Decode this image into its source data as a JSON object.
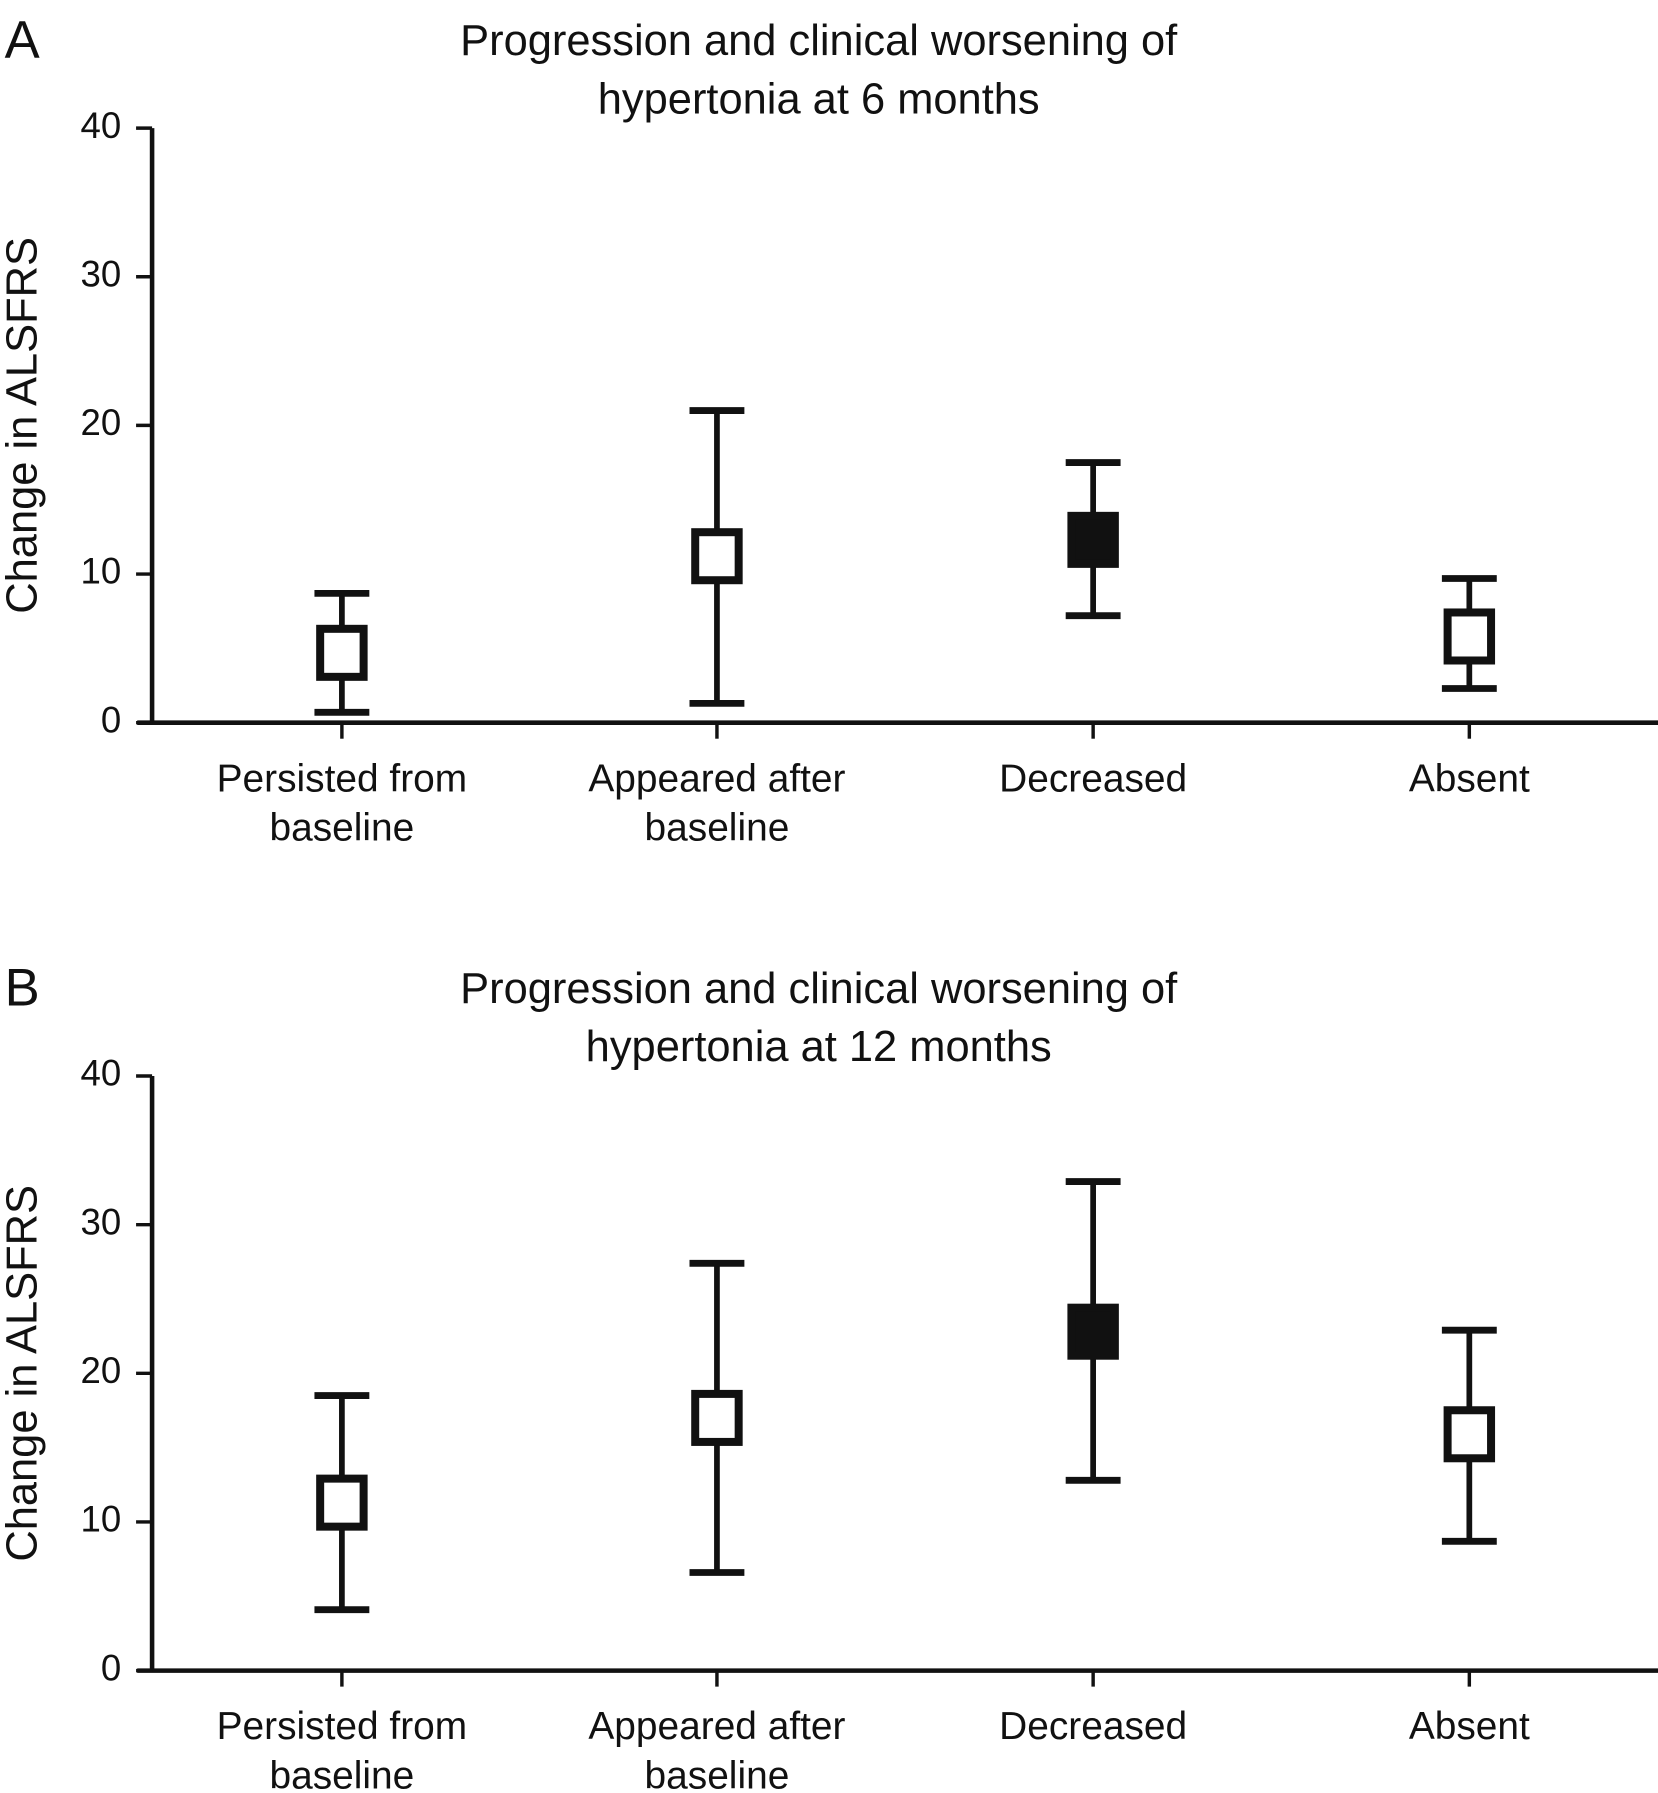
{
  "chart_data": [
    {
      "type": "errorbar",
      "panel_label": "A",
      "title": [
        "Progression and clinical worsening of",
        "hypertonia at 6 months"
      ],
      "ylabel": "Change in ALSFRS",
      "categories": [
        [
          "Persisted from",
          "baseline"
        ],
        [
          "Appeared after",
          "baseline"
        ],
        [
          "Decreased"
        ],
        [
          "Absent"
        ]
      ],
      "values": [
        4.7,
        11.2,
        12.3,
        5.8
      ],
      "upper": [
        8.7,
        21,
        17.5,
        9.7
      ],
      "lower": [
        0.7,
        1.3,
        7.2,
        2.3
      ],
      "marker_colors": [
        "#ffffff",
        "#ffffff",
        "#111111",
        "#ffffff"
      ],
      "color": "#111111",
      "ylim": [
        0,
        40
      ],
      "yticks": [
        0,
        10,
        20,
        30,
        40
      ]
    },
    {
      "type": "errorbar",
      "panel_label": "B",
      "title": [
        "Progression and clinical worsening of",
        "hypertonia at 12 months"
      ],
      "ylabel": "Change in ALSFRS",
      "categories": [
        [
          "Persisted from",
          "baseline"
        ],
        [
          "Appeared after",
          "baseline"
        ],
        [
          "Decreased"
        ],
        [
          "Absent"
        ]
      ],
      "values": [
        11.3,
        17,
        22.8,
        15.9
      ],
      "upper": [
        18.5,
        27.4,
        32.9,
        22.9
      ],
      "lower": [
        4.1,
        6.6,
        12.8,
        8.7
      ],
      "marker_colors": [
        "#ffffff",
        "#ffffff",
        "#111111",
        "#ffffff"
      ],
      "color": "#111111",
      "ylim": [
        0,
        40
      ],
      "yticks": [
        0,
        10,
        20,
        30,
        40
      ]
    }
  ]
}
